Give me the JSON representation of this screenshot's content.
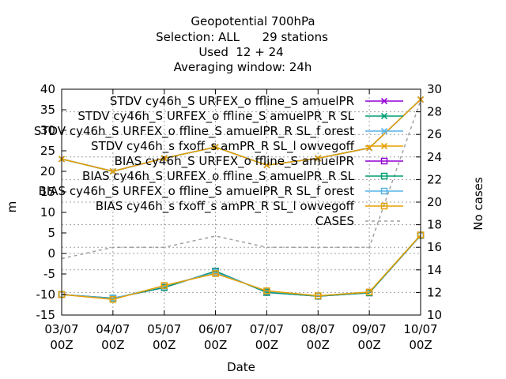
{
  "title_lines": [
    "Geopotential 700hPa",
    "Selection: ALL      29 stations",
    "Used  12 + 24",
    "Averaging window: 24h"
  ],
  "chart_data": {
    "type": "line",
    "xlabel": "Date",
    "ylabel": "m",
    "y2label": "No cases",
    "categories": [
      "03/07\n00Z",
      "04/07\n00Z",
      "05/07\n00Z",
      "06/07\n00Z",
      "07/07\n00Z",
      "08/07\n00Z",
      "09/07\n00Z",
      "10/07\n00Z"
    ],
    "ylim": [
      -15,
      40
    ],
    "y2lim": [
      10,
      30
    ],
    "yticks": [
      -15,
      -10,
      -5,
      0,
      5,
      10,
      15,
      20,
      25,
      30,
      35,
      40
    ],
    "y2ticks": [
      10,
      12,
      14,
      16,
      18,
      20,
      22,
      24,
      26,
      28,
      30
    ],
    "grid": true,
    "legend_position": "top-right",
    "series": [
      {
        "name": "STDV cy46h_S URFEX_o ffline_S amuelPR",
        "color": "#9400d3",
        "marker": "x",
        "axis": "y1",
        "values": [
          23.0,
          20.0,
          23.2,
          25.9,
          21.5,
          23.2,
          25.7,
          37.5
        ]
      },
      {
        "name": "STDV cy46h_S URFEX_o ffline_S amuelPR_R SL",
        "color": "#009e73",
        "marker": "x",
        "axis": "y1",
        "values": [
          23.0,
          20.0,
          23.2,
          25.9,
          21.5,
          23.2,
          25.7,
          37.5
        ]
      },
      {
        "name": "STDV cy46h_S URFEX_o ffline_S amuelPR_R SL_f orest",
        "color": "#56b4e9",
        "marker": "x",
        "axis": "y1",
        "values": [
          23.0,
          20.0,
          23.2,
          25.9,
          21.5,
          23.2,
          25.7,
          37.5
        ]
      },
      {
        "name": "STDV cy46h_s fxoff_s amPR_R SL_l owvegoff",
        "color": "#e69f00",
        "marker": "x",
        "axis": "y1",
        "values": [
          23.0,
          20.0,
          23.2,
          25.9,
          21.5,
          23.2,
          25.7,
          37.5
        ]
      },
      {
        "name": "BIAS cy46h_S URFEX_o ffline_S amuelPR",
        "color": "#9400d3",
        "marker": "square",
        "axis": "y1",
        "values": [
          -10.0,
          -10.9,
          -8.3,
          -4.3,
          -9.5,
          -10.4,
          -9.6,
          4.4
        ]
      },
      {
        "name": "BIAS cy46h_S URFEX_o ffline_S amuelPR_R SL",
        "color": "#009e73",
        "marker": "square",
        "axis": "y1",
        "values": [
          -10.0,
          -10.9,
          -8.3,
          -4.3,
          -9.5,
          -10.4,
          -9.6,
          4.4
        ]
      },
      {
        "name": "BIAS cy46h_S URFEX_o ffline_S amuelPR_R SL_f orest",
        "color": "#56b4e9",
        "marker": "square",
        "axis": "y1",
        "values": [
          -10.0,
          -11.0,
          -7.9,
          -4.7,
          -9.2,
          -10.3,
          -9.4,
          4.5
        ]
      },
      {
        "name": "BIAS cy46h_s fxoff_s amPR_R SL_l owvegoff",
        "color": "#e69f00",
        "marker": "square",
        "axis": "y1",
        "values": [
          -10.0,
          -11.2,
          -7.8,
          -4.9,
          -9.1,
          -10.3,
          -9.4,
          4.5
        ]
      },
      {
        "name": "CASES",
        "color": "#a0a0a0",
        "marker": "none",
        "dashed": true,
        "axis": "y2",
        "values": [
          15.0,
          16.0,
          16.0,
          17.0,
          16.0,
          16.0,
          16.0,
          29.0
        ]
      }
    ]
  }
}
